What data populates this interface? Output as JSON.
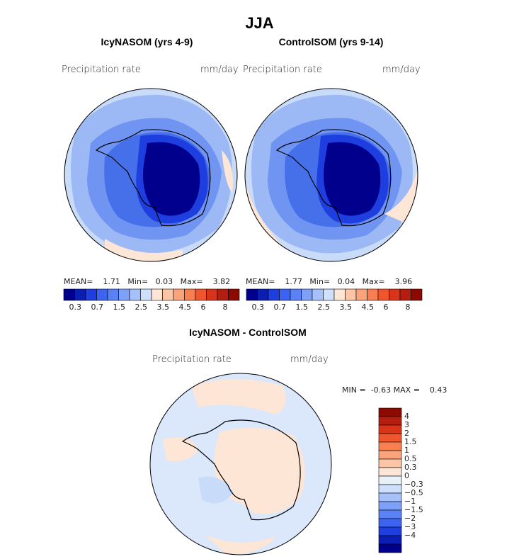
{
  "title": "JJA",
  "panels": [
    {
      "title": "IcyNASOM (yrs 4-9)",
      "variable": "Precipitation rate",
      "units": "mm/day",
      "stats": {
        "mean_label": "MEAN=",
        "mean": "1.71",
        "min_label": "Min=",
        "min": "0.03",
        "max_label": "Max=",
        "max": "3.82"
      }
    },
    {
      "title": "ControlSOM (yrs 9-14)",
      "variable": "Precipitation rate",
      "units": "mm/day",
      "stats": {
        "mean_label": "MEAN=",
        "mean": "1.77",
        "min_label": "Min=",
        "min": "0.04",
        "max_label": "Max=",
        "max": "3.96"
      }
    }
  ],
  "colorbar_h": {
    "ticks": [
      "0.3",
      "0.7",
      "1.5",
      "2.5",
      "3.5",
      "4.5",
      "6",
      "8"
    ],
    "colors": [
      "#00008c",
      "#0a1eb4",
      "#1f3ee0",
      "#3c64f0",
      "#5a82f5",
      "#7ea0f8",
      "#a6c0fa",
      "#cfe0fc",
      "#fde6d6",
      "#fcc6a6",
      "#fba47c",
      "#f88050",
      "#f0562e",
      "#d9341a",
      "#b41e10",
      "#8c0a00"
    ]
  },
  "diff": {
    "title": "IcyNASOM - ControlSOM",
    "variable": "Precipitation rate",
    "units": "mm/day",
    "min_label": "MIN =",
    "min": "-0.63",
    "max_label": "MAX =",
    "max": "0.43"
  },
  "colorbar_v": {
    "ticks": [
      "4",
      "3",
      "2",
      "1.5",
      "1",
      "0.5",
      "0.3",
      "0",
      "−0.3",
      "−0.5",
      "−1",
      "−1.5",
      "−2",
      "−3",
      "−4"
    ],
    "colors": [
      "#8c0a00",
      "#b41e10",
      "#d9341a",
      "#f0562e",
      "#f88050",
      "#fba47c",
      "#fcc6a6",
      "#fde6d6",
      "#e8f0f8",
      "#cfe0fc",
      "#a6c0fa",
      "#7ea0f8",
      "#5a82f5",
      "#3c64f0",
      "#1f3ee0",
      "#0a1eb4",
      "#00008c"
    ]
  },
  "colors": {
    "ocean_light": "#c8dcfa",
    "ocean_mid": "#9db9f5",
    "land_core": "#00008c",
    "warm_patch": "#fde6d6",
    "diff_bg": "#dbe8fb"
  }
}
